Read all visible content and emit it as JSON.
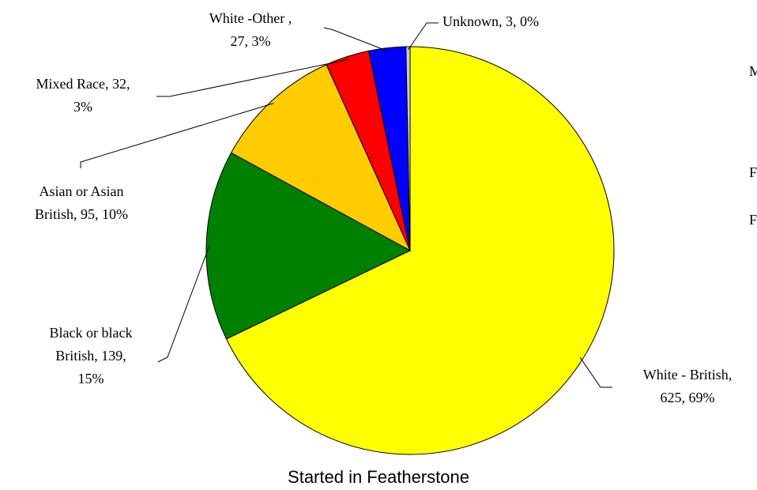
{
  "chart_data": {
    "type": "pie",
    "title": "Started in Featherstone",
    "values": [
      625,
      139,
      95,
      32,
      27,
      3
    ],
    "value_labels": [
      [
        "White - British,",
        "625, 69%"
      ],
      [
        "Black or black",
        "British, 139,",
        "15%"
      ],
      [
        "Asian or Asian",
        "British, 95, 10%"
      ],
      [
        "Mixed Race, 32,",
        "3%"
      ],
      [
        "White -Other ,",
        "27, 3%"
      ],
      [
        "Unknown, 3, 0%"
      ]
    ],
    "colors": [
      "#ffff00",
      "#008000",
      "#ffcc00",
      "#ff0000",
      "#0000ff",
      "#c8c8f0"
    ],
    "clipped_legend": [
      "M",
      "F",
      "F"
    ]
  }
}
